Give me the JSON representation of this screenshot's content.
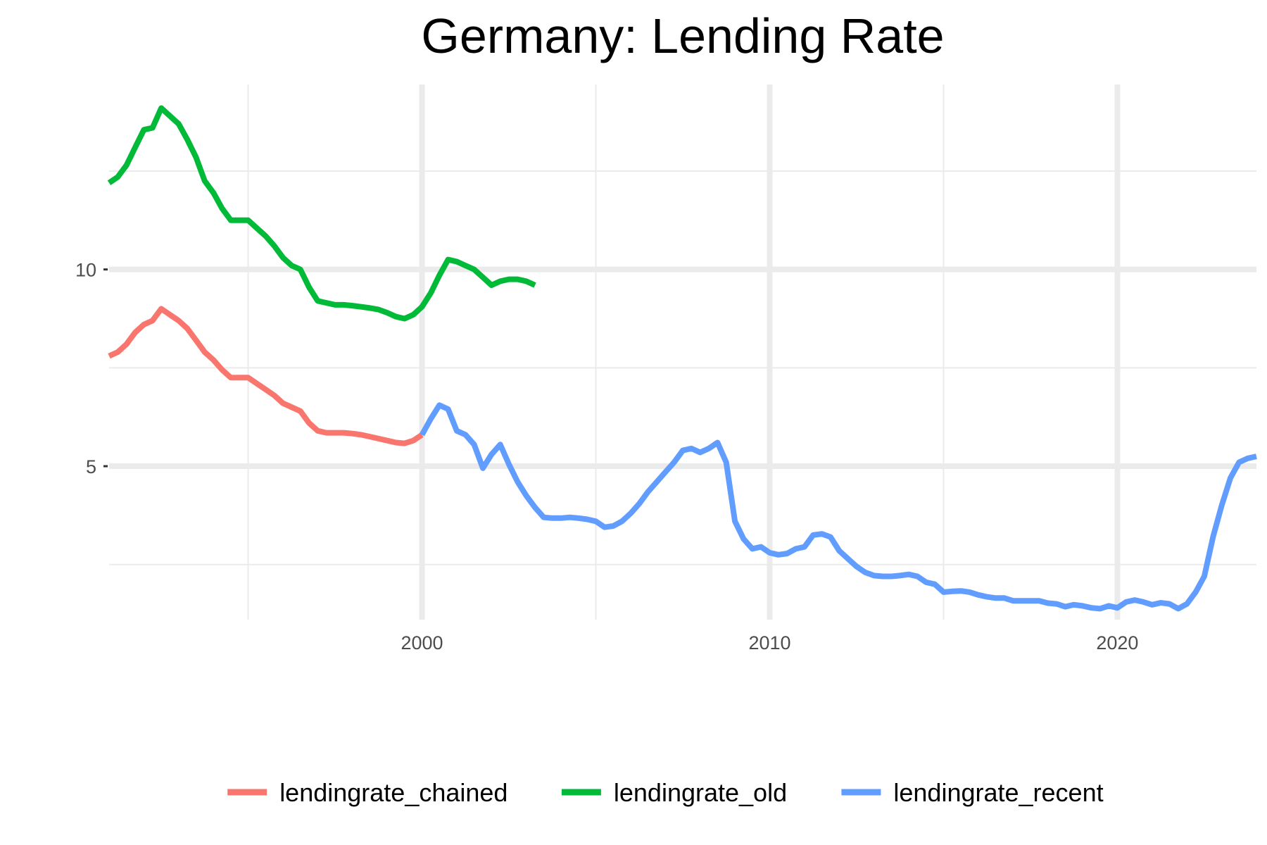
{
  "chart_data": {
    "type": "line",
    "title": "Germany: Lending Rate",
    "xlabel": "",
    "ylabel": "",
    "xlim": [
      1991.0,
      2024.0
    ],
    "ylim": [
      1.1,
      14.7
    ],
    "x_ticks": [
      2000,
      2010,
      2020
    ],
    "x_tick_labels": [
      "2000",
      "2010",
      "2020"
    ],
    "x_minor_grid": [
      1995,
      2005,
      2015
    ],
    "y_ticks": [
      5,
      10
    ],
    "y_tick_labels": [
      "5",
      "10"
    ],
    "y_minor_grid": [
      2.5,
      7.5,
      12.5
    ],
    "grid": true,
    "legend_position": "bottom",
    "series": [
      {
        "name": "lendingrate_chained",
        "color": "#F8766D",
        "x": [
          1991.0,
          1991.25,
          1991.5,
          1991.75,
          1992.0,
          1992.25,
          1992.5,
          1992.75,
          1993.0,
          1993.25,
          1993.5,
          1993.75,
          1994.0,
          1994.25,
          1994.5,
          1994.75,
          1995.0,
          1995.25,
          1995.5,
          1995.75,
          1996.0,
          1996.25,
          1996.5,
          1996.75,
          1997.0,
          1997.25,
          1997.5,
          1997.75,
          1998.0,
          1998.25,
          1998.5,
          1998.75,
          1999.0,
          1999.25,
          1999.5,
          1999.75,
          2000.0
        ],
        "values": [
          7.8,
          7.9,
          8.1,
          8.4,
          8.6,
          8.7,
          9.0,
          8.85,
          8.7,
          8.5,
          8.2,
          7.9,
          7.7,
          7.45,
          7.25,
          7.25,
          7.25,
          7.1,
          6.95,
          6.8,
          6.6,
          6.5,
          6.4,
          6.1,
          5.9,
          5.85,
          5.85,
          5.85,
          5.83,
          5.8,
          5.75,
          5.7,
          5.65,
          5.6,
          5.58,
          5.65,
          5.8
        ]
      },
      {
        "name": "lendingrate_old",
        "color": "#00BA38",
        "x": [
          1991.0,
          1991.25,
          1991.5,
          1991.75,
          1992.0,
          1992.25,
          1992.5,
          1992.75,
          1993.0,
          1993.25,
          1993.5,
          1993.75,
          1994.0,
          1994.25,
          1994.5,
          1994.75,
          1995.0,
          1995.25,
          1995.5,
          1995.75,
          1996.0,
          1996.25,
          1996.5,
          1996.75,
          1997.0,
          1997.25,
          1997.5,
          1997.75,
          1998.0,
          1998.25,
          1998.5,
          1998.75,
          1999.0,
          1999.25,
          1999.5,
          1999.75,
          2000.0,
          2000.25,
          2000.5,
          2000.75,
          2001.0,
          2001.25,
          2001.5,
          2001.75,
          2002.0,
          2002.25,
          2002.5,
          2002.75,
          2003.0,
          2003.25
        ],
        "values": [
          12.2,
          12.35,
          12.65,
          13.1,
          13.55,
          13.6,
          14.1,
          13.9,
          13.7,
          13.3,
          12.85,
          12.25,
          11.95,
          11.55,
          11.25,
          11.25,
          11.25,
          11.05,
          10.85,
          10.6,
          10.3,
          10.1,
          10.0,
          9.55,
          9.2,
          9.15,
          9.1,
          9.1,
          9.08,
          9.05,
          9.02,
          8.98,
          8.9,
          8.8,
          8.75,
          8.85,
          9.05,
          9.4,
          9.85,
          10.25,
          10.2,
          10.1,
          10.0,
          9.8,
          9.6,
          9.7,
          9.75,
          9.75,
          9.7,
          9.6
        ]
      },
      {
        "name": "lendingrate_recent",
        "color": "#619CFF",
        "x": [
          2000.0,
          2000.25,
          2000.5,
          2000.75,
          2001.0,
          2001.25,
          2001.5,
          2001.75,
          2002.0,
          2002.25,
          2002.5,
          2002.75,
          2003.0,
          2003.25,
          2003.5,
          2003.75,
          2004.0,
          2004.25,
          2004.5,
          2004.75,
          2005.0,
          2005.25,
          2005.5,
          2005.75,
          2006.0,
          2006.25,
          2006.5,
          2006.75,
          2007.0,
          2007.25,
          2007.5,
          2007.75,
          2008.0,
          2008.25,
          2008.5,
          2008.75,
          2009.0,
          2009.25,
          2009.5,
          2009.75,
          2010.0,
          2010.25,
          2010.5,
          2010.75,
          2011.0,
          2011.25,
          2011.5,
          2011.75,
          2012.0,
          2012.25,
          2012.5,
          2012.75,
          2013.0,
          2013.25,
          2013.5,
          2013.75,
          2014.0,
          2014.25,
          2014.5,
          2014.75,
          2015.0,
          2015.25,
          2015.5,
          2015.75,
          2016.0,
          2016.25,
          2016.5,
          2016.75,
          2017.0,
          2017.25,
          2017.5,
          2017.75,
          2018.0,
          2018.25,
          2018.5,
          2018.75,
          2019.0,
          2019.25,
          2019.5,
          2019.75,
          2020.0,
          2020.25,
          2020.5,
          2020.75,
          2021.0,
          2021.25,
          2021.5,
          2021.75,
          2022.0,
          2022.25,
          2022.5,
          2022.75,
          2023.0,
          2023.25,
          2023.5,
          2023.75,
          2024.0
        ],
        "values": [
          5.8,
          6.2,
          6.55,
          6.45,
          5.9,
          5.8,
          5.55,
          4.95,
          5.3,
          5.55,
          5.05,
          4.6,
          4.25,
          3.95,
          3.7,
          3.68,
          3.68,
          3.7,
          3.68,
          3.65,
          3.6,
          3.45,
          3.48,
          3.6,
          3.8,
          4.05,
          4.35,
          4.6,
          4.85,
          5.1,
          5.4,
          5.45,
          5.35,
          5.45,
          5.6,
          5.1,
          3.6,
          3.15,
          2.9,
          2.95,
          2.8,
          2.75,
          2.78,
          2.9,
          2.95,
          3.25,
          3.28,
          3.2,
          2.85,
          2.65,
          2.45,
          2.3,
          2.22,
          2.2,
          2.2,
          2.22,
          2.25,
          2.2,
          2.05,
          2.0,
          1.8,
          1.82,
          1.83,
          1.8,
          1.73,
          1.68,
          1.65,
          1.65,
          1.58,
          1.58,
          1.58,
          1.58,
          1.52,
          1.5,
          1.43,
          1.48,
          1.45,
          1.4,
          1.38,
          1.45,
          1.4,
          1.55,
          1.6,
          1.55,
          1.48,
          1.53,
          1.5,
          1.38,
          1.5,
          1.8,
          2.2,
          3.2,
          4.0,
          4.7,
          5.1,
          5.2,
          5.25
        ]
      }
    ]
  }
}
